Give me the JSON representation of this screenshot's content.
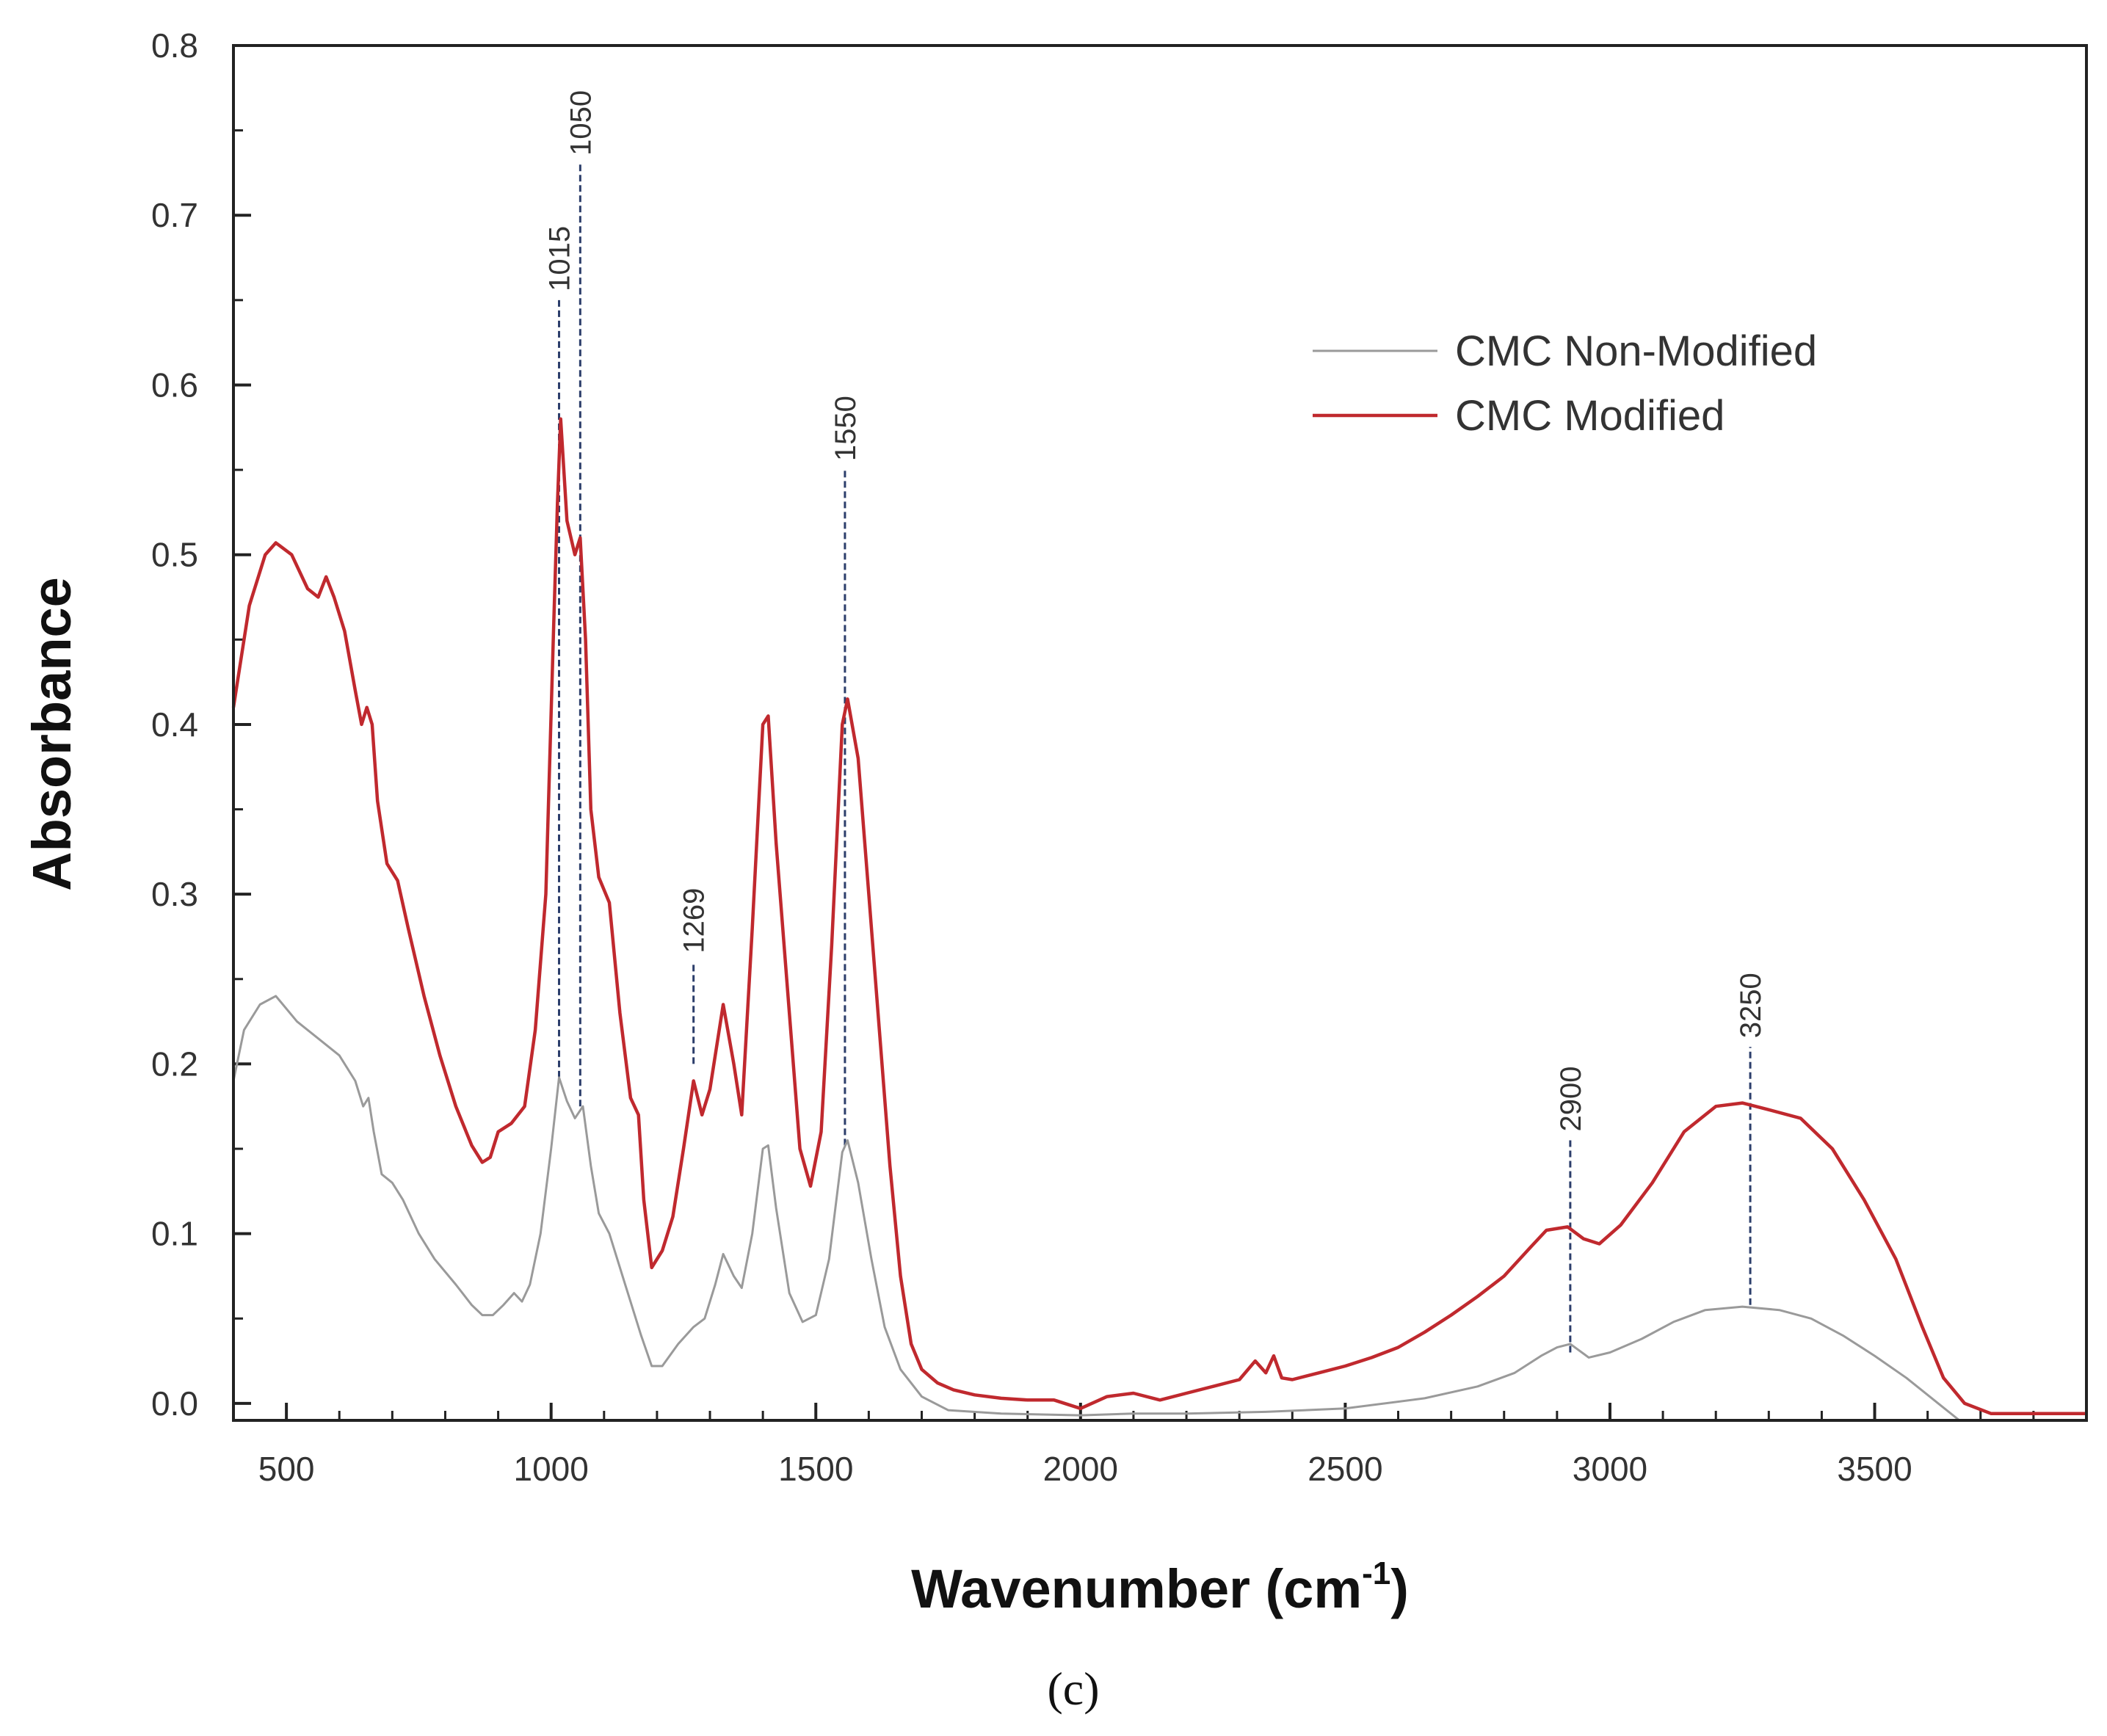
{
  "chart_data": {
    "type": "line",
    "title": "",
    "xlabel": "Wavenumber (cm",
    "xlabel_superscript": "-1",
    "xlabel_close": ")",
    "ylabel": "Absorbance",
    "panel_label": "(c)",
    "xlim": [
      400,
      3900
    ],
    "ylim": [
      -0.01,
      0.8
    ],
    "x_ticks": [
      500,
      1000,
      1500,
      2000,
      2500,
      3000,
      3500
    ],
    "y_ticks": [
      0.0,
      0.1,
      0.2,
      0.3,
      0.4,
      0.5,
      0.6,
      0.7,
      0.8
    ],
    "y_tick_labels": [
      "0.0",
      "0.1",
      "0.2",
      "0.3",
      "0.4",
      "0.5",
      "0.6",
      "0.7",
      "0.8"
    ],
    "x_minor_step": 100,
    "y_minor_step": 0.05,
    "grid": false,
    "legend_position": "top-right",
    "series": [
      {
        "name": "CMC Non-Modified",
        "color": "#9a9a9a",
        "points": [
          [
            400,
            0.19
          ],
          [
            420,
            0.22
          ],
          [
            450,
            0.235
          ],
          [
            480,
            0.24
          ],
          [
            520,
            0.225
          ],
          [
            560,
            0.215
          ],
          [
            600,
            0.205
          ],
          [
            630,
            0.19
          ],
          [
            645,
            0.175
          ],
          [
            655,
            0.18
          ],
          [
            665,
            0.16
          ],
          [
            680,
            0.135
          ],
          [
            700,
            0.13
          ],
          [
            720,
            0.12
          ],
          [
            750,
            0.1
          ],
          [
            780,
            0.085
          ],
          [
            820,
            0.07
          ],
          [
            850,
            0.058
          ],
          [
            870,
            0.052
          ],
          [
            890,
            0.052
          ],
          [
            910,
            0.058
          ],
          [
            930,
            0.065
          ],
          [
            945,
            0.06
          ],
          [
            960,
            0.07
          ],
          [
            980,
            0.1
          ],
          [
            1000,
            0.15
          ],
          [
            1015,
            0.192
          ],
          [
            1030,
            0.178
          ],
          [
            1045,
            0.168
          ],
          [
            1060,
            0.175
          ],
          [
            1075,
            0.14
          ],
          [
            1090,
            0.112
          ],
          [
            1110,
            0.1
          ],
          [
            1140,
            0.07
          ],
          [
            1170,
            0.04
          ],
          [
            1190,
            0.022
          ],
          [
            1210,
            0.022
          ],
          [
            1240,
            0.035
          ],
          [
            1269,
            0.045
          ],
          [
            1290,
            0.05
          ],
          [
            1310,
            0.07
          ],
          [
            1325,
            0.088
          ],
          [
            1345,
            0.075
          ],
          [
            1360,
            0.068
          ],
          [
            1380,
            0.1
          ],
          [
            1400,
            0.15
          ],
          [
            1410,
            0.152
          ],
          [
            1425,
            0.115
          ],
          [
            1450,
            0.065
          ],
          [
            1475,
            0.048
          ],
          [
            1500,
            0.052
          ],
          [
            1525,
            0.085
          ],
          [
            1550,
            0.148
          ],
          [
            1560,
            0.155
          ],
          [
            1580,
            0.13
          ],
          [
            1605,
            0.085
          ],
          [
            1630,
            0.045
          ],
          [
            1660,
            0.02
          ],
          [
            1700,
            0.004
          ],
          [
            1750,
            -0.004
          ],
          [
            1850,
            -0.006
          ],
          [
            2000,
            -0.007
          ],
          [
            2100,
            -0.006
          ],
          [
            2200,
            -0.006
          ],
          [
            2350,
            -0.005
          ],
          [
            2500,
            -0.003
          ],
          [
            2650,
            0.003
          ],
          [
            2750,
            0.01
          ],
          [
            2820,
            0.018
          ],
          [
            2870,
            0.028
          ],
          [
            2900,
            0.033
          ],
          [
            2925,
            0.035
          ],
          [
            2960,
            0.027
          ],
          [
            3000,
            0.03
          ],
          [
            3060,
            0.038
          ],
          [
            3120,
            0.048
          ],
          [
            3180,
            0.055
          ],
          [
            3250,
            0.057
          ],
          [
            3320,
            0.055
          ],
          [
            3380,
            0.05
          ],
          [
            3440,
            0.04
          ],
          [
            3500,
            0.028
          ],
          [
            3560,
            0.015
          ],
          [
            3620,
            0.0
          ],
          [
            3660,
            -0.01
          ]
        ]
      },
      {
        "name": "CMC Modified",
        "color": "#c0292e",
        "points": [
          [
            400,
            0.41
          ],
          [
            430,
            0.47
          ],
          [
            460,
            0.5
          ],
          [
            480,
            0.507
          ],
          [
            510,
            0.5
          ],
          [
            540,
            0.48
          ],
          [
            560,
            0.475
          ],
          [
            575,
            0.487
          ],
          [
            590,
            0.475
          ],
          [
            610,
            0.455
          ],
          [
            630,
            0.42
          ],
          [
            642,
            0.4
          ],
          [
            652,
            0.41
          ],
          [
            662,
            0.4
          ],
          [
            672,
            0.355
          ],
          [
            690,
            0.318
          ],
          [
            710,
            0.308
          ],
          [
            730,
            0.28
          ],
          [
            760,
            0.24
          ],
          [
            790,
            0.205
          ],
          [
            820,
            0.175
          ],
          [
            850,
            0.152
          ],
          [
            870,
            0.142
          ],
          [
            885,
            0.145
          ],
          [
            900,
            0.16
          ],
          [
            925,
            0.165
          ],
          [
            950,
            0.175
          ],
          [
            970,
            0.22
          ],
          [
            990,
            0.3
          ],
          [
            1005,
            0.46
          ],
          [
            1012,
            0.53
          ],
          [
            1018,
            0.58
          ],
          [
            1030,
            0.52
          ],
          [
            1045,
            0.5
          ],
          [
            1055,
            0.51
          ],
          [
            1065,
            0.45
          ],
          [
            1075,
            0.35
          ],
          [
            1090,
            0.31
          ],
          [
            1110,
            0.295
          ],
          [
            1130,
            0.23
          ],
          [
            1150,
            0.18
          ],
          [
            1165,
            0.17
          ],
          [
            1175,
            0.12
          ],
          [
            1190,
            0.08
          ],
          [
            1210,
            0.09
          ],
          [
            1230,
            0.11
          ],
          [
            1250,
            0.15
          ],
          [
            1269,
            0.19
          ],
          [
            1285,
            0.17
          ],
          [
            1300,
            0.185
          ],
          [
            1325,
            0.235
          ],
          [
            1345,
            0.2
          ],
          [
            1360,
            0.17
          ],
          [
            1380,
            0.28
          ],
          [
            1400,
            0.4
          ],
          [
            1410,
            0.405
          ],
          [
            1425,
            0.33
          ],
          [
            1450,
            0.23
          ],
          [
            1470,
            0.15
          ],
          [
            1490,
            0.128
          ],
          [
            1510,
            0.16
          ],
          [
            1530,
            0.27
          ],
          [
            1550,
            0.4
          ],
          [
            1560,
            0.415
          ],
          [
            1580,
            0.38
          ],
          [
            1600,
            0.3
          ],
          [
            1620,
            0.22
          ],
          [
            1640,
            0.14
          ],
          [
            1660,
            0.075
          ],
          [
            1680,
            0.035
          ],
          [
            1700,
            0.02
          ],
          [
            1730,
            0.012
          ],
          [
            1760,
            0.008
          ],
          [
            1800,
            0.005
          ],
          [
            1850,
            0.003
          ],
          [
            1900,
            0.002
          ],
          [
            1950,
            0.002
          ],
          [
            2000,
            -0.003
          ],
          [
            2050,
            0.004
          ],
          [
            2100,
            0.006
          ],
          [
            2150,
            0.002
          ],
          [
            2200,
            0.006
          ],
          [
            2250,
            0.01
          ],
          [
            2300,
            0.014
          ],
          [
            2330,
            0.025
          ],
          [
            2350,
            0.018
          ],
          [
            2365,
            0.028
          ],
          [
            2380,
            0.015
          ],
          [
            2400,
            0.014
          ],
          [
            2450,
            0.018
          ],
          [
            2500,
            0.022
          ],
          [
            2550,
            0.027
          ],
          [
            2600,
            0.033
          ],
          [
            2650,
            0.042
          ],
          [
            2700,
            0.052
          ],
          [
            2750,
            0.063
          ],
          [
            2800,
            0.075
          ],
          [
            2850,
            0.092
          ],
          [
            2880,
            0.102
          ],
          [
            2920,
            0.104
          ],
          [
            2950,
            0.097
          ],
          [
            2980,
            0.094
          ],
          [
            3020,
            0.105
          ],
          [
            3080,
            0.13
          ],
          [
            3140,
            0.16
          ],
          [
            3200,
            0.175
          ],
          [
            3250,
            0.177
          ],
          [
            3300,
            0.173
          ],
          [
            3360,
            0.168
          ],
          [
            3420,
            0.15
          ],
          [
            3480,
            0.12
          ],
          [
            3540,
            0.085
          ],
          [
            3590,
            0.045
          ],
          [
            3630,
            0.015
          ],
          [
            3670,
            0.0
          ],
          [
            3720,
            -0.006
          ],
          [
            3780,
            -0.006
          ],
          [
            3850,
            -0.006
          ],
          [
            3900,
            -0.006
          ]
        ]
      }
    ],
    "annotations": [
      {
        "label": "1015",
        "x": 1015,
        "y_from": 0.192,
        "y_to": 0.65
      },
      {
        "label": "1050",
        "x": 1055,
        "y_from": 0.175,
        "y_to": 0.73
      },
      {
        "label": "1269",
        "x": 1269,
        "y_from": 0.2,
        "y_to": 0.26
      },
      {
        "label": "1550",
        "x": 1555,
        "y_from": 0.152,
        "y_to": 0.55
      },
      {
        "label": "2900",
        "x": 2925,
        "y_from": 0.03,
        "y_to": 0.155
      },
      {
        "label": "3250",
        "x": 3265,
        "y_from": 0.058,
        "y_to": 0.21
      }
    ]
  }
}
